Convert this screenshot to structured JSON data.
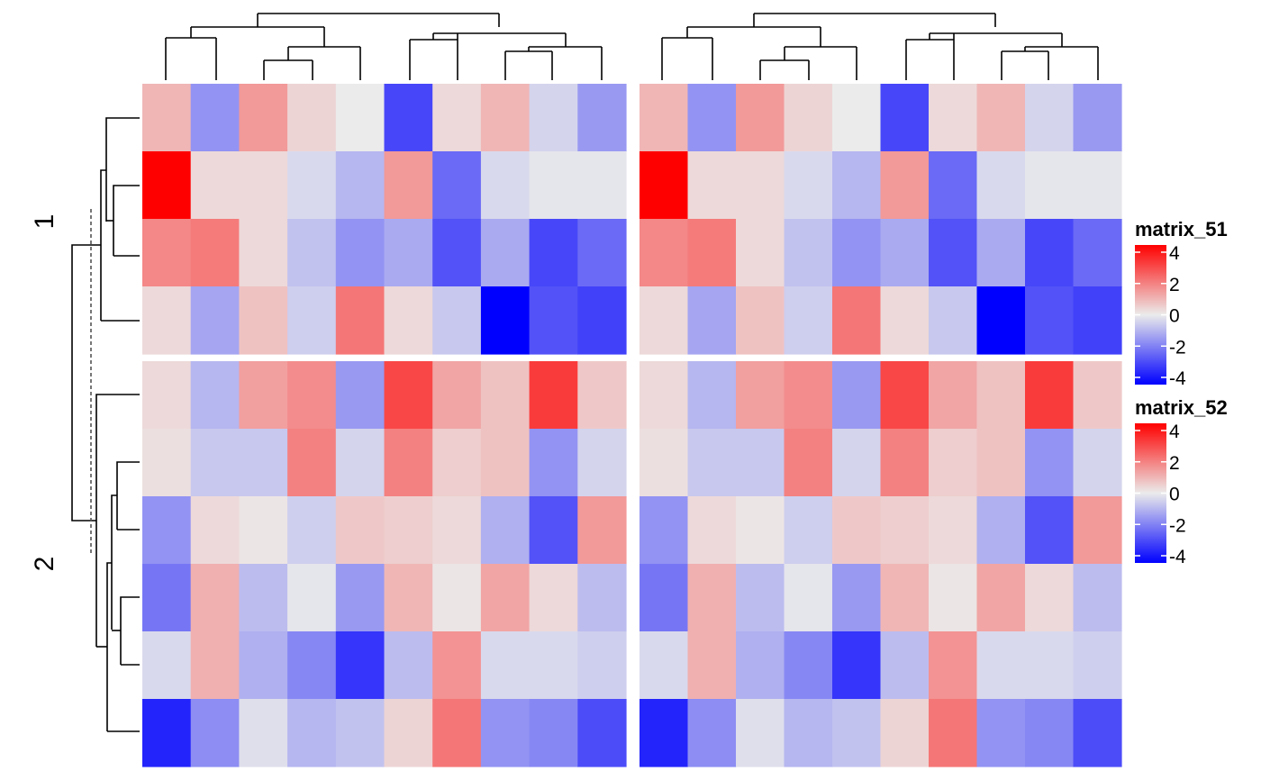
{
  "chart_data": {
    "type": "heatmap",
    "title": "",
    "row_split_labels": [
      "1",
      "2"
    ],
    "color_scale": {
      "min": -4,
      "mid": 0,
      "max": 4,
      "low_color": "#0000ff",
      "mid_color": "#ebebeb",
      "high_color": "#ff0000"
    },
    "legends": [
      {
        "name": "matrix_51",
        "ticks": [
          "4",
          "2",
          "0",
          "-2",
          "-4"
        ]
      },
      {
        "name": "matrix_52",
        "ticks": [
          "4",
          "2",
          "0",
          "-2",
          "-4"
        ]
      }
    ],
    "heatmaps": [
      {
        "name": "matrix_51"
      },
      {
        "name": "matrix_52"
      }
    ],
    "values": [
      [
        0.9,
        -1.5,
        1.4,
        0.4,
        0.0,
        -2.8,
        0.3,
        0.9,
        -0.4,
        -1.4
      ],
      [
        4.0,
        0.3,
        0.3,
        -0.3,
        -0.9,
        1.4,
        -2.2,
        -0.3,
        -0.1,
        -0.1
      ],
      [
        1.7,
        1.9,
        0.3,
        -0.7,
        -1.5,
        -1.1,
        -2.6,
        -1.1,
        -2.8,
        -2.2
      ],
      [
        0.3,
        -1.2,
        0.7,
        -0.5,
        2.0,
        0.3,
        -0.6,
        -4.0,
        -2.6,
        -2.9
      ],
      [
        0.3,
        -0.9,
        1.3,
        1.6,
        -1.4,
        2.8,
        1.2,
        0.7,
        3.0,
        0.6
      ],
      [
        0.2,
        -0.6,
        -0.6,
        1.8,
        -0.4,
        1.8,
        0.5,
        0.7,
        -1.5,
        -0.4
      ],
      [
        -1.5,
        0.3,
        0.1,
        -0.5,
        0.6,
        0.5,
        0.3,
        -1.0,
        -2.6,
        1.4
      ],
      [
        -2.0,
        1.0,
        -0.8,
        -0.1,
        -1.4,
        0.9,
        0.1,
        1.2,
        0.3,
        -0.8
      ],
      [
        -0.3,
        1.0,
        -1.0,
        -1.7,
        -3.1,
        -0.8,
        1.5,
        -0.3,
        -0.3,
        -0.5
      ],
      [
        -3.4,
        -1.6,
        -0.2,
        -0.9,
        -0.7,
        0.4,
        2.0,
        -1.5,
        -1.7,
        -2.7
      ]
    ],
    "row_slices": [
      {
        "label": "1",
        "rows": [
          0,
          1,
          2,
          3
        ]
      },
      {
        "label": "2",
        "rows": [
          4,
          5,
          6,
          7,
          8,
          9
        ]
      }
    ]
  }
}
